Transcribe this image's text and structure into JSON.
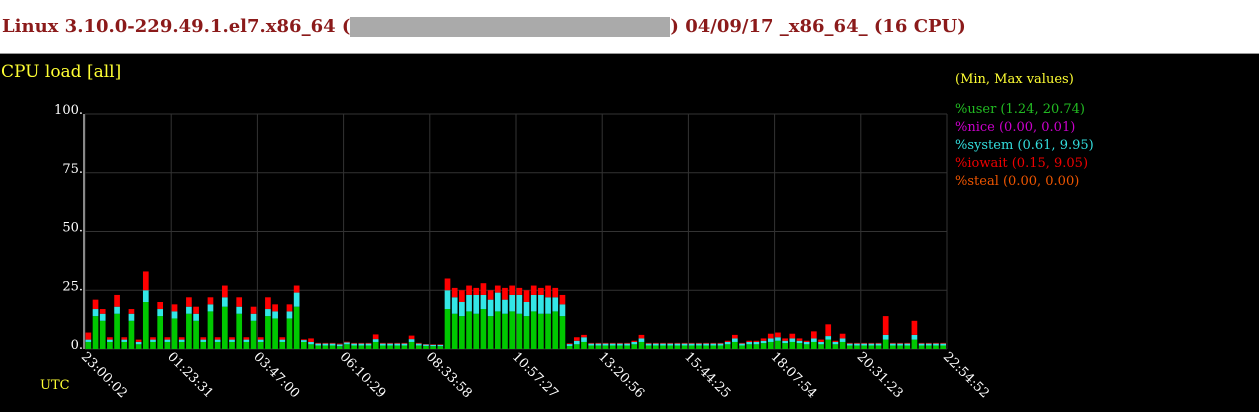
{
  "header": {
    "text_before": "Linux 3.10.0-229.49.1.el7.x86_64 (",
    "text_after": ") 04/09/17 _x86_64_ (16 CPU)"
  },
  "chart_data": {
    "type": "stacked_bar",
    "title": "CPU load [all]",
    "legend_title": "(Min, Max values)",
    "x_axis_label": "UTC",
    "xtick_labels": [
      "23:00:02",
      "01:23:31",
      "03:47:00",
      "06:10:29",
      "08:33:58",
      "10:57:27",
      "13:20:56",
      "15:44:25",
      "18:07:54",
      "20:31:23",
      "22:54:52"
    ],
    "ylim": [
      0,
      100
    ],
    "yticks": [
      {
        "value": 0,
        "label": "0."
      },
      {
        "value": 25,
        "label": "25."
      },
      {
        "value": 50,
        "label": "50."
      },
      {
        "value": 75,
        "label": "75."
      },
      {
        "value": 100,
        "label": "100."
      }
    ],
    "grid": true,
    "series": [
      {
        "name": "%user (1.24, 20.74)",
        "color": "#00c800",
        "legend_color": "#22bb22",
        "values": [
          3,
          14,
          12,
          3,
          15,
          3,
          12,
          2,
          20,
          3,
          14,
          3,
          13,
          3,
          15,
          12,
          3,
          16,
          3,
          18,
          3,
          15,
          3,
          12,
          3,
          14,
          13,
          3,
          13,
          18,
          3,
          2,
          1.5,
          1.5,
          1.5,
          1.2,
          2,
          1.5,
          1.5,
          1.5,
          3,
          1.5,
          1.5,
          1.5,
          1.5,
          3,
          1.5,
          1.3,
          1.2,
          1.2,
          17,
          15,
          14,
          16,
          15,
          17,
          14,
          16,
          15,
          16,
          15,
          14,
          16,
          15,
          15,
          16,
          14,
          1.3,
          2,
          3,
          1.5,
          1.5,
          1.5,
          1.5,
          1.5,
          1.5,
          2,
          3,
          1.5,
          1.5,
          1.5,
          1.5,
          1.5,
          1.5,
          1.5,
          1.5,
          1.5,
          1.5,
          1.5,
          2,
          3,
          1.5,
          2,
          2,
          2.5,
          3,
          3.5,
          2.5,
          3,
          2.5,
          2,
          3,
          2,
          4,
          2,
          3,
          1.5,
          1.5,
          1.5,
          1.5,
          1.5,
          4,
          1.5,
          1.5,
          1.5,
          4,
          1.5,
          1.5,
          1.5,
          1.5
        ]
      },
      {
        "name": "%nice (0.00, 0.01)",
        "color": "#ff00ff",
        "legend_color": "#cc00cc",
        "values": [
          0,
          0,
          0,
          0,
          0,
          0,
          0,
          0,
          0,
          0,
          0,
          0,
          0,
          0,
          0,
          0,
          0,
          0,
          0,
          0,
          0,
          0,
          0,
          0,
          0,
          0,
          0,
          0,
          0,
          0.01,
          0,
          0,
          0,
          0,
          0,
          0,
          0,
          0,
          0,
          0,
          0,
          0,
          0,
          0,
          0,
          0,
          0,
          0,
          0,
          0,
          0,
          0,
          0,
          0,
          0,
          0,
          0,
          0,
          0,
          0,
          0,
          0,
          0,
          0,
          0,
          0,
          0,
          0,
          0,
          0,
          0,
          0,
          0,
          0,
          0,
          0,
          0,
          0,
          0,
          0,
          0,
          0,
          0,
          0,
          0,
          0,
          0,
          0,
          0,
          0,
          0,
          0,
          0,
          0,
          0,
          0,
          0,
          0,
          0,
          0,
          0,
          0,
          0,
          0,
          0,
          0,
          0,
          0,
          0,
          0,
          0,
          0,
          0,
          0,
          0,
          0,
          0,
          0,
          0,
          0
        ]
      },
      {
        "name": "%system (0.61, 9.95)",
        "color": "#33e6e6",
        "legend_color": "#33dddd",
        "values": [
          1,
          3,
          3,
          1,
          3,
          1,
          3,
          1,
          5,
          1,
          3,
          1,
          3,
          1,
          3,
          3,
          1,
          3,
          1,
          4,
          1,
          3,
          1,
          3,
          1,
          3,
          3,
          1,
          3,
          6,
          0.8,
          1,
          0.8,
          0.8,
          0.8,
          0.8,
          0.8,
          0.8,
          0.8,
          0.8,
          1.2,
          0.8,
          0.8,
          0.8,
          0.8,
          1.2,
          0.8,
          0.6,
          0.6,
          0.6,
          8,
          7,
          6,
          7,
          8,
          6,
          7,
          8,
          6,
          7,
          8,
          6,
          7,
          8,
          7,
          6,
          5,
          0.8,
          1.5,
          2,
          0.8,
          0.8,
          0.8,
          0.8,
          0.8,
          0.8,
          1,
          1.5,
          0.8,
          0.8,
          0.8,
          0.8,
          0.8,
          0.8,
          0.8,
          0.8,
          0.8,
          0.8,
          0.8,
          1,
          1.5,
          0.8,
          1,
          1,
          1,
          1.5,
          1.5,
          1,
          1.5,
          1,
          1,
          1.5,
          1,
          1.5,
          1,
          1.5,
          0.8,
          0.8,
          0.8,
          0.8,
          0.8,
          2,
          0.8,
          0.8,
          0.8,
          2,
          0.8,
          0.8,
          0.8,
          0.8
        ]
      },
      {
        "name": "%iowait (0.15, 9.05)",
        "color": "#ff0000",
        "legend_color": "#ee0000",
        "values": [
          3,
          4,
          2,
          1,
          5,
          1,
          2,
          1,
          8,
          1,
          3,
          1,
          3,
          1,
          4,
          3,
          1,
          3,
          1,
          5,
          1,
          4,
          1,
          3,
          1,
          5,
          3,
          1,
          3,
          3,
          0.3,
          1.5,
          0.3,
          0.3,
          0.3,
          0.3,
          0.3,
          0.3,
          0.3,
          0.3,
          2,
          0.3,
          0.3,
          0.3,
          0.3,
          1.5,
          0.3,
          0.2,
          0.2,
          0.2,
          5,
          4,
          5,
          4,
          3,
          5,
          4,
          3,
          5,
          4,
          3,
          5,
          4,
          3,
          5,
          4,
          4,
          0.3,
          1.5,
          1,
          0.3,
          0.3,
          0.3,
          0.3,
          0.3,
          0.3,
          0.5,
          1.5,
          0.3,
          0.3,
          0.3,
          0.3,
          0.3,
          0.3,
          0.3,
          0.3,
          0.3,
          0.3,
          0.3,
          0.5,
          1.5,
          0.3,
          0.5,
          0.5,
          1,
          2,
          2,
          1,
          2,
          1,
          0.5,
          3,
          1,
          5,
          0.5,
          2,
          0.3,
          0.3,
          0.3,
          0.3,
          0.3,
          8,
          0.3,
          0.3,
          0.3,
          6,
          0.3,
          0.3,
          0.3,
          0.3
        ]
      },
      {
        "name": "%steal (0.00, 0.00)",
        "color": "#ff6600",
        "legend_color": "#ee5500",
        "values": [
          0,
          0,
          0,
          0,
          0,
          0,
          0,
          0,
          0,
          0,
          0,
          0,
          0,
          0,
          0,
          0,
          0,
          0,
          0,
          0,
          0,
          0,
          0,
          0,
          0,
          0,
          0,
          0,
          0,
          0,
          0,
          0,
          0,
          0,
          0,
          0,
          0,
          0,
          0,
          0,
          0,
          0,
          0,
          0,
          0,
          0,
          0,
          0,
          0,
          0,
          0,
          0,
          0,
          0,
          0,
          0,
          0,
          0,
          0,
          0,
          0,
          0,
          0,
          0,
          0,
          0,
          0,
          0,
          0,
          0,
          0,
          0,
          0,
          0,
          0,
          0,
          0,
          0,
          0,
          0,
          0,
          0,
          0,
          0,
          0,
          0,
          0,
          0,
          0,
          0,
          0,
          0,
          0,
          0,
          0,
          0,
          0,
          0,
          0,
          0,
          0,
          0,
          0,
          0,
          0,
          0,
          0,
          0,
          0,
          0,
          0,
          0,
          0,
          0,
          0,
          0,
          0,
          0,
          0,
          0
        ]
      }
    ]
  }
}
